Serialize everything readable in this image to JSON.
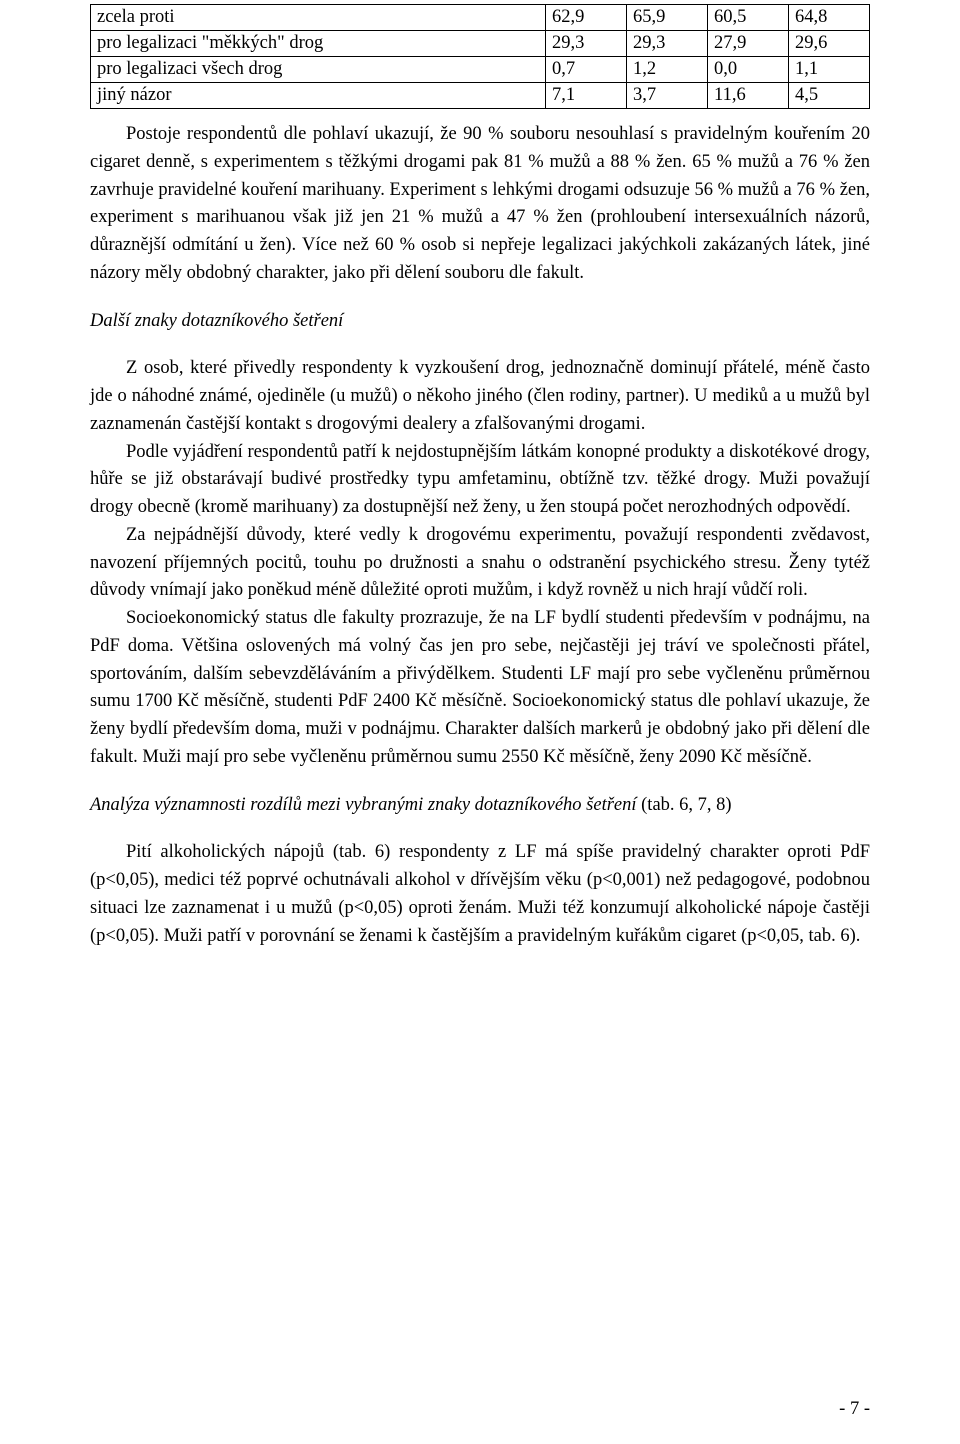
{
  "table": {
    "rows": [
      {
        "label": "zcela proti",
        "c1": "62,9",
        "c2": "65,9",
        "c3": "60,5",
        "c4": "64,8"
      },
      {
        "label": "pro legalizaci \"měkkých\" drog",
        "c1": "29,3",
        "c2": "29,3",
        "c3": "27,9",
        "c4": "29,6"
      },
      {
        "label": "pro legalizaci všech drog",
        "c1": "0,7",
        "c2": "1,2",
        "c3": "0,0",
        "c4": "1,1"
      },
      {
        "label": "jiný názor",
        "c1": "7,1",
        "c2": "3,7",
        "c3": "11,6",
        "c4": "4,5"
      }
    ]
  },
  "para1": "Postoje respondentů dle pohlaví ukazují, že 90 % souboru nesouhlasí s pravidelným kouřením 20 cigaret denně, s experimentem s těžkými drogami pak 81 % mužů a 88 % žen. 65 % mužů a 76 % žen zavrhuje pravidelné kouření marihuany. Experiment s lehkými drogami odsuzuje 56 % mužů a 76 % žen, experiment s marihuanou však již jen 21 % mužů a 47 % žen (prohloubení intersexuálních názorů, důraznější odmítání u žen). Více než 60 % osob si nepřeje legalizaci jakýchkoli zakázaných látek, jiné názory měly obdobný charakter, jako při dělení souboru dle fakult.",
  "heading2": "Další znaky dotazníkového šetření",
  "para2": "Z osob, které přivedly respondenty k vyzkoušení drog, jednoznačně dominují přátelé, méně často jde o náhodné známé, ojediněle (u mužů) o někoho jiného (člen rodiny, partner). U mediků a u mužů byl zaznamenán častější kontakt s drogovými dealery a zfalšovanými drogami.",
  "para3": "Podle vyjádření respondentů patří k nejdostupnějším látkám konopné produkty a diskotékové drogy, hůře se již obstarávají budivé prostředky typu amfetaminu, obtížně tzv. těžké drogy. Muži považují drogy obecně (kromě marihuany) za dostupnější než ženy, u žen stoupá počet nerozhodných odpovědí.",
  "para4": "Za nejpádnější důvody, které vedly k drogovému experimentu, považují respondenti zvědavost, navození příjemných pocitů, touhu po družnosti a snahu o odstranění psychického stresu. Ženy tytéž důvody vnímají jako poněkud méně důležité oproti mužům, i když rovněž u nich hrají vůdčí roli.",
  "para5": "Socioekonomický status dle fakulty prozrazuje, že na LF bydlí studenti především v podnájmu, na PdF doma. Většina oslovených má volný čas jen pro sebe, nejčastěji jej tráví ve společnosti přátel, sportováním, dalším sebevzděláváním a přivýdělkem. Studenti LF mají pro sebe vyčleněnu průměrnou sumu 1700 Kč měsíčně, studenti PdF 2400 Kč měsíčně. Socioekonomický status dle pohlaví ukazuje, že ženy bydlí především doma, muži v podnájmu. Charakter dalších markerů je obdobný jako při dělení dle fakult. Muži mají pro sebe vyčleněnu průměrnou sumu 2550 Kč měsíčně, ženy 2090 Kč měsíčně.",
  "heading3_prefix": "Analýza významnosti rozdílů mezi vybranými znaky dotazníkového šetření",
  "heading3_suffix": " (tab. 6, 7, 8)",
  "para6": "Pití alkoholických nápojů (tab. 6) respondenty z LF má spíše pravidelný charakter oproti PdF (p<0,05), medici též poprvé ochutnávali alkohol v dřívějším věku (p<0,001) než pedagogové, podobnou situaci lze zaznamenat i u mužů (p<0,05) oproti ženám. Muži též konzumují alkoholické nápoje častěji (p<0,05). Muži patří v porovnání se ženami k častějším a pravidelným kuřákům cigaret (p<0,05, tab. 6).",
  "pageno": "- 7 -"
}
